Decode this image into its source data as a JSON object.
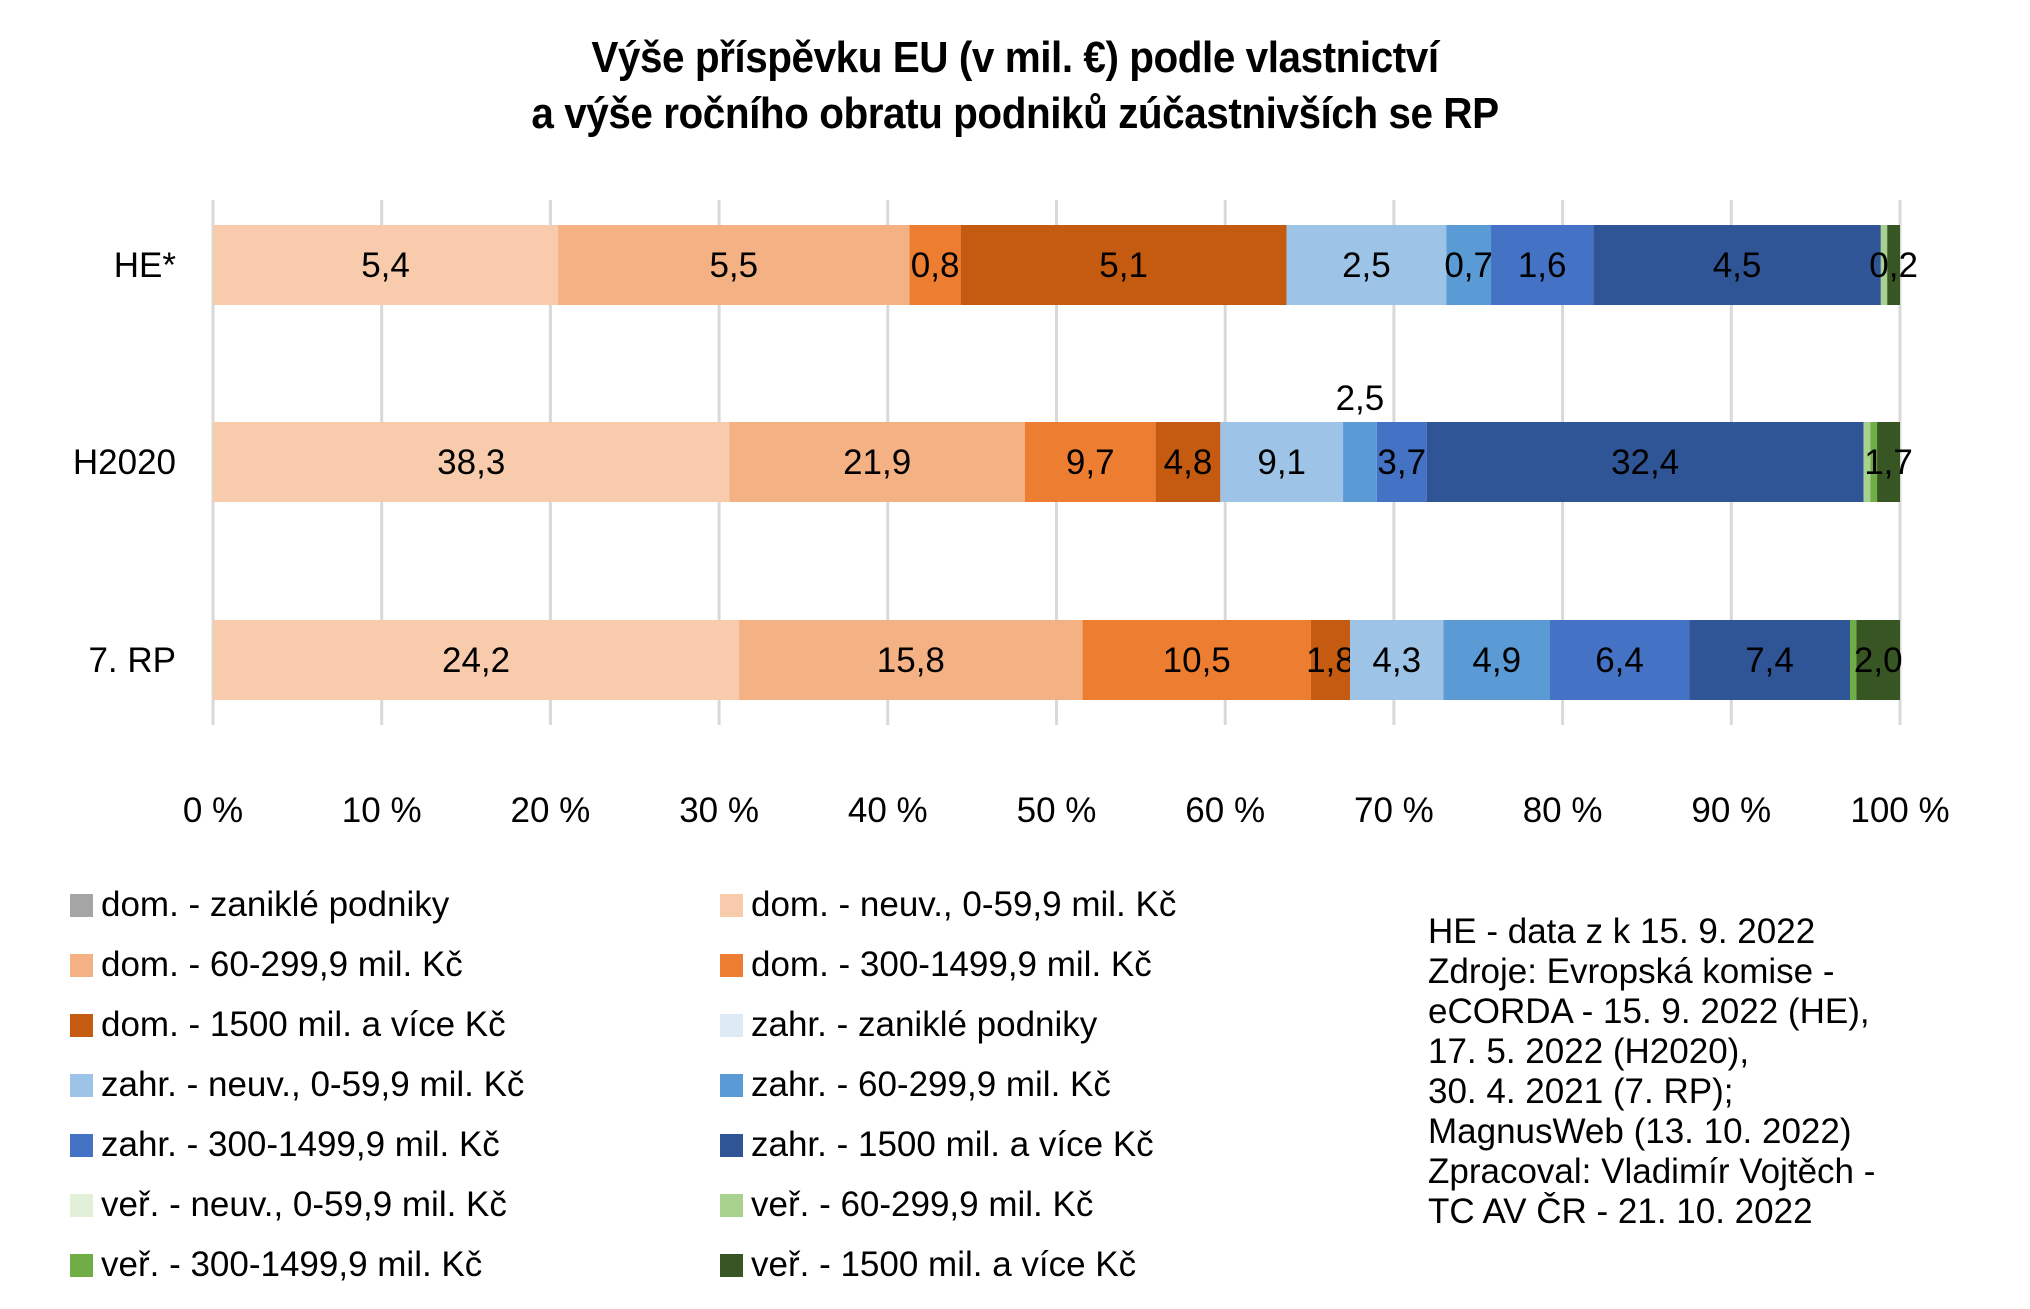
{
  "chart_data": {
    "type": "bar",
    "orientation": "horizontal",
    "stacked": "percent",
    "title": "Výše příspěvku EU (v mil. €) podle vlastnictví a výše ročního obratu podniků zúčastnivších se RP",
    "title_lines": [
      "Výše příspěvku EU (v mil. €) podle vlastnictví",
      "a výše ročního obratu podniků zúčastnivších se RP"
    ],
    "xlabel": "",
    "ylabel": "",
    "xlim": [
      0,
      100
    ],
    "x_ticks": [
      "0 %",
      "10 %",
      "20 %",
      "30 %",
      "40 %",
      "50 %",
      "60 %",
      "70 %",
      "80 %",
      "90 %",
      "100 %"
    ],
    "grid": "vertical",
    "legend_position": "bottom",
    "categories": [
      "HE*",
      "H2020",
      "7. RP"
    ],
    "series": [
      {
        "name": "dom. - zaniklé podniky",
        "color": "#a5a5a5",
        "values": [
          0,
          0,
          0
        ],
        "labels": [
          "",
          "",
          ""
        ]
      },
      {
        "name": "dom. - neuv., 0-59,9 mil. Kč",
        "color": "#f8cbad",
        "values": [
          5.4,
          38.3,
          24.2
        ],
        "labels": [
          "5,4",
          "38,3",
          "24,2"
        ]
      },
      {
        "name": "dom. - 60-299,9 mil. Kč",
        "color": "#f4b183",
        "values": [
          5.5,
          21.9,
          15.8
        ],
        "labels": [
          "5,5",
          "21,9",
          "15,8"
        ]
      },
      {
        "name": "dom. - 300-1499,9 mil. Kč",
        "color": "#ed7d31",
        "values": [
          0.8,
          9.7,
          10.5
        ],
        "labels": [
          "0,8",
          "9,7",
          "10,5"
        ]
      },
      {
        "name": "dom. - 1500 mil. a více Kč",
        "color": "#c55a11",
        "values": [
          5.1,
          4.8,
          1.8
        ],
        "labels": [
          "5,1",
          "4,8",
          "1,8"
        ]
      },
      {
        "name": "zahr. - zaniklé podniky",
        "color": "#deebf7",
        "values": [
          0,
          0,
          0
        ],
        "labels": [
          "",
          "",
          ""
        ]
      },
      {
        "name": "zahr. - neuv., 0-59,9 mil. Kč",
        "color": "#9dc3e6",
        "values": [
          2.5,
          9.1,
          4.3
        ],
        "labels": [
          "2,5",
          "9,1",
          "4,3"
        ]
      },
      {
        "name": "zahr. - 60-299,9 mil. Kč",
        "color": "#5b9bd5",
        "values": [
          0.7,
          2.5,
          4.9
        ],
        "labels": [
          "0,7",
          "2,5",
          "4,9"
        ]
      },
      {
        "name": "zahr. - 300-1499,9 mil. Kč",
        "color": "#4472c4",
        "values": [
          1.6,
          3.7,
          6.4
        ],
        "labels": [
          "1,6",
          "3,7",
          "6,4"
        ]
      },
      {
        "name": "zahr. - 1500 mil. a více Kč",
        "color": "#2f5597",
        "values": [
          4.5,
          32.4,
          7.4
        ],
        "labels": [
          "4,5",
          "32,4",
          "7,4"
        ]
      },
      {
        "name": "veř. - neuv., 0-59,9 mil. Kč",
        "color": "#e2f0d9",
        "values": [
          0,
          0,
          0
        ],
        "labels": [
          "",
          "",
          ""
        ]
      },
      {
        "name": "veř. - 60-299,9 mil. Kč",
        "color": "#a9d18e",
        "values": [
          0.1,
          0.5,
          0
        ],
        "labels": [
          "",
          "",
          ""
        ]
      },
      {
        "name": "veř. - 300-1499,9 mil. Kč",
        "color": "#70ad47",
        "values": [
          0,
          0.5,
          0.3
        ],
        "labels": [
          "",
          "",
          ""
        ]
      },
      {
        "name": "veř. - 1500 mil. a více Kč",
        "color": "#375623",
        "values": [
          0.2,
          1.7,
          2.0
        ],
        "labels": [
          "0,2",
          "1,7",
          "2,0"
        ]
      }
    ]
  },
  "legend_order": [
    0,
    1,
    2,
    3,
    4,
    5,
    6,
    7,
    8,
    9,
    10,
    11,
    12,
    13
  ],
  "note_lines": [
    "HE - data z k 15. 9. 2022",
    "Zdroje: Evropská komise -",
    "eCORDA - 15. 9. 2022 (HE),",
    "17. 5. 2022 (H2020),",
    "30. 4. 2021 (7. RP);",
    "MagnusWeb (13. 10. 2022)",
    "Zpracoval: Vladimír Vojtěch -",
    "TC AV ČR - 21. 10. 2022"
  ]
}
